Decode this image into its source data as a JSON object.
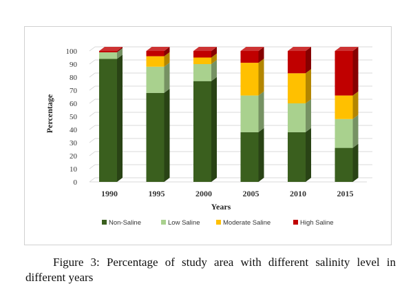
{
  "caption": "Figure 3: Percentage of study area with different salinity level in different years",
  "chart_data": {
    "type": "bar",
    "stacked": true,
    "three_d": true,
    "xlabel": "Years",
    "ylabel": "Percentage",
    "ylim": [
      0,
      100
    ],
    "yticks": [
      0,
      10,
      20,
      30,
      40,
      50,
      60,
      70,
      80,
      90,
      100
    ],
    "grid": true,
    "legend_position": "bottom",
    "categories": [
      "1990",
      "1995",
      "2000",
      "2005",
      "2010",
      "2015"
    ],
    "series": [
      {
        "name": "Non-Saline",
        "color": "#3a5f1e",
        "values": [
          94,
          68,
          77,
          38,
          38,
          26
        ]
      },
      {
        "name": "Low Saline",
        "color": "#a9d18e",
        "values": [
          5,
          20,
          13,
          28,
          22,
          22
        ]
      },
      {
        "name": "Moderate Saline",
        "color": "#ffc000",
        "values": [
          0,
          8,
          5,
          25,
          23,
          18
        ]
      },
      {
        "name": "High Saline",
        "color": "#c00000",
        "values": [
          1,
          4,
          5,
          9,
          17,
          34
        ]
      }
    ]
  }
}
